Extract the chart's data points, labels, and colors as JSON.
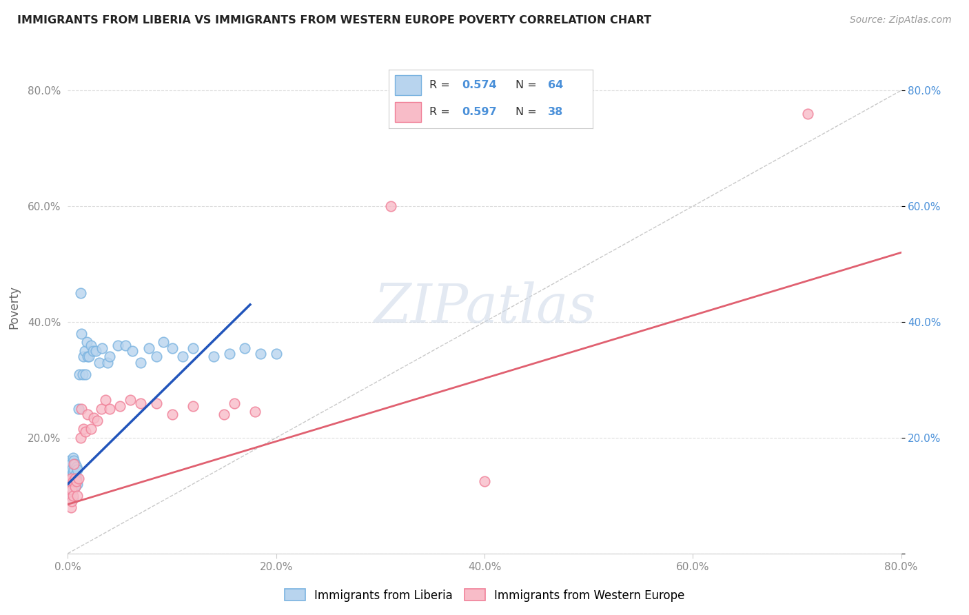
{
  "title": "IMMIGRANTS FROM LIBERIA VS IMMIGRANTS FROM WESTERN EUROPE POVERTY CORRELATION CHART",
  "source": "Source: ZipAtlas.com",
  "ylabel": "Poverty",
  "xlim": [
    0,
    0.8
  ],
  "ylim": [
    0,
    0.85
  ],
  "background_color": "#ffffff",
  "grid_color": "#dddddd",
  "liberia_color": "#7ab3e0",
  "liberia_fill": "#b8d4ee",
  "western_europe_color": "#f08098",
  "western_europe_fill": "#f8bcc8",
  "trendline_liberia_color": "#2255bb",
  "trendline_we_color": "#e06070",
  "refline_color": "#bbbbbb",
  "tick_color_blue": "#4a90d9",
  "tick_color_gray": "#888888",
  "liberia_x": [
    0.001,
    0.001,
    0.002,
    0.002,
    0.002,
    0.002,
    0.003,
    0.003,
    0.003,
    0.003,
    0.003,
    0.003,
    0.004,
    0.004,
    0.004,
    0.004,
    0.005,
    0.005,
    0.005,
    0.005,
    0.005,
    0.006,
    0.006,
    0.006,
    0.007,
    0.007,
    0.007,
    0.008,
    0.008,
    0.009,
    0.009,
    0.01,
    0.011,
    0.012,
    0.013,
    0.014,
    0.015,
    0.016,
    0.017,
    0.018,
    0.019,
    0.02,
    0.022,
    0.024,
    0.027,
    0.03,
    0.033,
    0.038,
    0.04,
    0.048,
    0.055,
    0.062,
    0.07,
    0.078,
    0.085,
    0.092,
    0.1,
    0.11,
    0.12,
    0.14,
    0.155,
    0.17,
    0.185,
    0.2
  ],
  "liberia_y": [
    0.13,
    0.095,
    0.11,
    0.095,
    0.13,
    0.16,
    0.1,
    0.12,
    0.14,
    0.115,
    0.155,
    0.1,
    0.125,
    0.145,
    0.105,
    0.13,
    0.12,
    0.14,
    0.095,
    0.165,
    0.11,
    0.125,
    0.145,
    0.16,
    0.135,
    0.115,
    0.155,
    0.13,
    0.15,
    0.12,
    0.145,
    0.25,
    0.31,
    0.45,
    0.38,
    0.31,
    0.34,
    0.35,
    0.31,
    0.365,
    0.34,
    0.34,
    0.36,
    0.35,
    0.35,
    0.33,
    0.355,
    0.33,
    0.34,
    0.36,
    0.36,
    0.35,
    0.33,
    0.355,
    0.34,
    0.365,
    0.355,
    0.34,
    0.355,
    0.34,
    0.345,
    0.355,
    0.345,
    0.345
  ],
  "western_europe_x": [
    0.001,
    0.002,
    0.002,
    0.003,
    0.003,
    0.004,
    0.004,
    0.005,
    0.005,
    0.006,
    0.007,
    0.007,
    0.008,
    0.009,
    0.01,
    0.012,
    0.013,
    0.015,
    0.017,
    0.019,
    0.022,
    0.025,
    0.028,
    0.032,
    0.036,
    0.04,
    0.05,
    0.06,
    0.07,
    0.085,
    0.1,
    0.12,
    0.15,
    0.16,
    0.18,
    0.31,
    0.4,
    0.71
  ],
  "western_europe_y": [
    0.11,
    0.125,
    0.095,
    0.13,
    0.08,
    0.11,
    0.09,
    0.125,
    0.1,
    0.155,
    0.13,
    0.115,
    0.125,
    0.1,
    0.13,
    0.2,
    0.25,
    0.215,
    0.21,
    0.24,
    0.215,
    0.235,
    0.23,
    0.25,
    0.265,
    0.25,
    0.255,
    0.265,
    0.26,
    0.26,
    0.24,
    0.255,
    0.24,
    0.26,
    0.245,
    0.6,
    0.125,
    0.76
  ],
  "lib_trend_x": [
    0.0,
    0.175
  ],
  "lib_trend_y": [
    0.12,
    0.43
  ],
  "we_trend_x": [
    0.0,
    0.8
  ],
  "we_trend_y": [
    0.085,
    0.52
  ]
}
